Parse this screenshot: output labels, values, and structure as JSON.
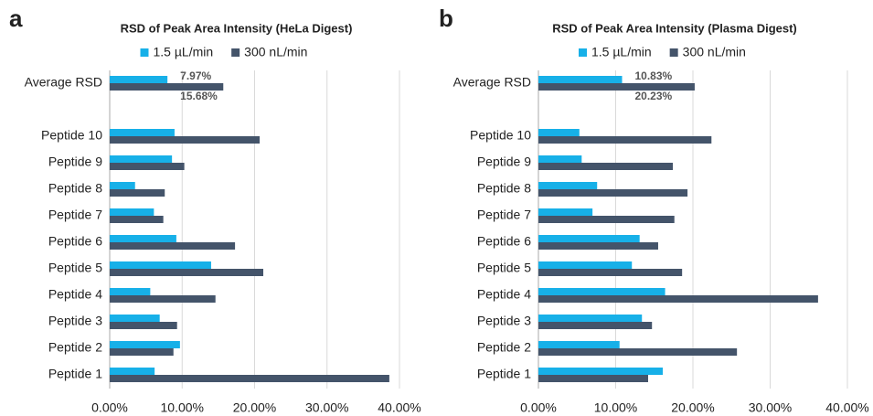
{
  "chart_data": [
    {
      "type": "bar",
      "panel": "a",
      "title": "RSD of Peak Area Intensity (HeLa Digest)",
      "categories": [
        "Average RSD",
        null,
        "Peptide 10",
        "Peptide 9",
        "Peptide 8",
        "Peptide 7",
        "Peptide 6",
        "Peptide 5",
        "Peptide 4",
        "Peptide 3",
        "Peptide 2",
        "Peptide 1"
      ],
      "series": [
        {
          "name": "1.5 µL/min",
          "color": "#17b0e8",
          "values": [
            7.97,
            null,
            8.95,
            8.6,
            3.5,
            6.1,
            9.2,
            14.0,
            5.6,
            6.9,
            9.7,
            6.2
          ],
          "value_labels": [
            "7.97%",
            null,
            null,
            null,
            null,
            null,
            null,
            null,
            null,
            null,
            null,
            null
          ]
        },
        {
          "name": "300 nL/min",
          "color": "#44546a",
          "values": [
            15.68,
            null,
            20.7,
            10.3,
            7.6,
            7.4,
            17.3,
            21.2,
            14.6,
            9.3,
            8.8,
            38.6
          ],
          "value_labels": [
            "15.68%",
            null,
            null,
            null,
            null,
            null,
            null,
            null,
            null,
            null,
            null,
            null
          ]
        }
      ],
      "xlim": [
        0,
        40
      ],
      "xticks": [
        {
          "value": 0,
          "label": "0.00%"
        },
        {
          "value": 10,
          "label": "10.00%"
        },
        {
          "value": 20,
          "label": "20.00%"
        },
        {
          "value": 30,
          "label": "30.00%"
        },
        {
          "value": 40,
          "label": "40.00%"
        }
      ],
      "grid": true
    },
    {
      "type": "bar",
      "panel": "b",
      "title": "RSD of Peak Area Intensity (Plasma Digest)",
      "categories": [
        "Average RSD",
        null,
        "Peptide 10",
        "Peptide 9",
        "Peptide 8",
        "Peptide 7",
        "Peptide 6",
        "Peptide 5",
        "Peptide 4",
        "Peptide 3",
        "Peptide 2",
        "Peptide 1"
      ],
      "series": [
        {
          "name": "1.5 µL/min",
          "color": "#17b0e8",
          "values": [
            10.83,
            null,
            5.3,
            5.6,
            7.6,
            7.0,
            13.1,
            12.1,
            16.4,
            13.4,
            10.5,
            16.1
          ],
          "value_labels": [
            "10.83%",
            null,
            null,
            null,
            null,
            null,
            null,
            null,
            null,
            null,
            null,
            null
          ]
        },
        {
          "name": "300 nL/min",
          "color": "#44546a",
          "values": [
            20.23,
            null,
            22.4,
            17.4,
            19.3,
            17.6,
            15.5,
            18.6,
            36.2,
            14.7,
            25.7,
            14.2
          ],
          "value_labels": [
            "20.23%",
            null,
            null,
            null,
            null,
            null,
            null,
            null,
            null,
            null,
            null,
            null
          ]
        }
      ],
      "xlim": [
        0,
        40
      ],
      "xticks": [
        {
          "value": 0,
          "label": "0.00%"
        },
        {
          "value": 10,
          "label": "10.00%"
        },
        {
          "value": 20,
          "label": "20.00%"
        },
        {
          "value": 30,
          "label": "30.00%"
        },
        {
          "value": 40,
          "label": "40.00%"
        }
      ],
      "grid": true
    }
  ]
}
